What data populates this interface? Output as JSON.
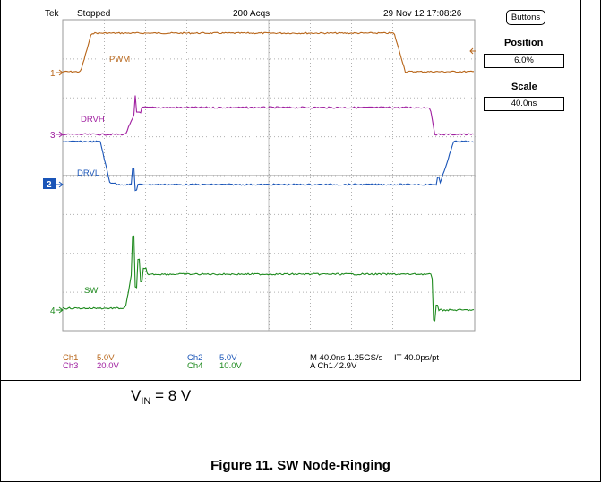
{
  "header": {
    "brand": "Tek",
    "state": "Stopped",
    "acquisitions": "200 Acqs",
    "datetime": "29 Nov 12 17:08:26"
  },
  "side_panel": {
    "menu_button": "Buttons",
    "position_label": "Position",
    "position_value": "6.0%",
    "scale_label": "Scale",
    "scale_value": "40.0ns"
  },
  "channels": {
    "ch1": {
      "marker": "1",
      "name": "PWM",
      "color": "#b8661a"
    },
    "ch3": {
      "marker": "3",
      "name": "DRVH",
      "color": "#a020a0"
    },
    "ch2": {
      "marker": "2",
      "name": "DRVL",
      "color": "#1a55b8"
    },
    "ch4": {
      "marker": "4",
      "name": "SW",
      "color": "#1e8a1e"
    }
  },
  "status_bar": {
    "ch1_label": "Ch1",
    "ch1_scale": "5.0V",
    "ch3_label": "Ch3",
    "ch3_scale": "20.0V",
    "ch2_label": "Ch2",
    "ch2_scale": "5.0V",
    "ch4_label": "Ch4",
    "ch4_scale": "10.0V",
    "timebase": "M 40.0ns 1.25GS/s",
    "record": "IT 40.0ps/pt",
    "trigger": "A  Ch1  ∕  2.9V"
  },
  "annotation": {
    "vin_prefix": "V",
    "vin_sub": "IN",
    "vin_suffix": " = 8 V"
  },
  "caption": "Figure 11. SW Node-Ringing"
}
